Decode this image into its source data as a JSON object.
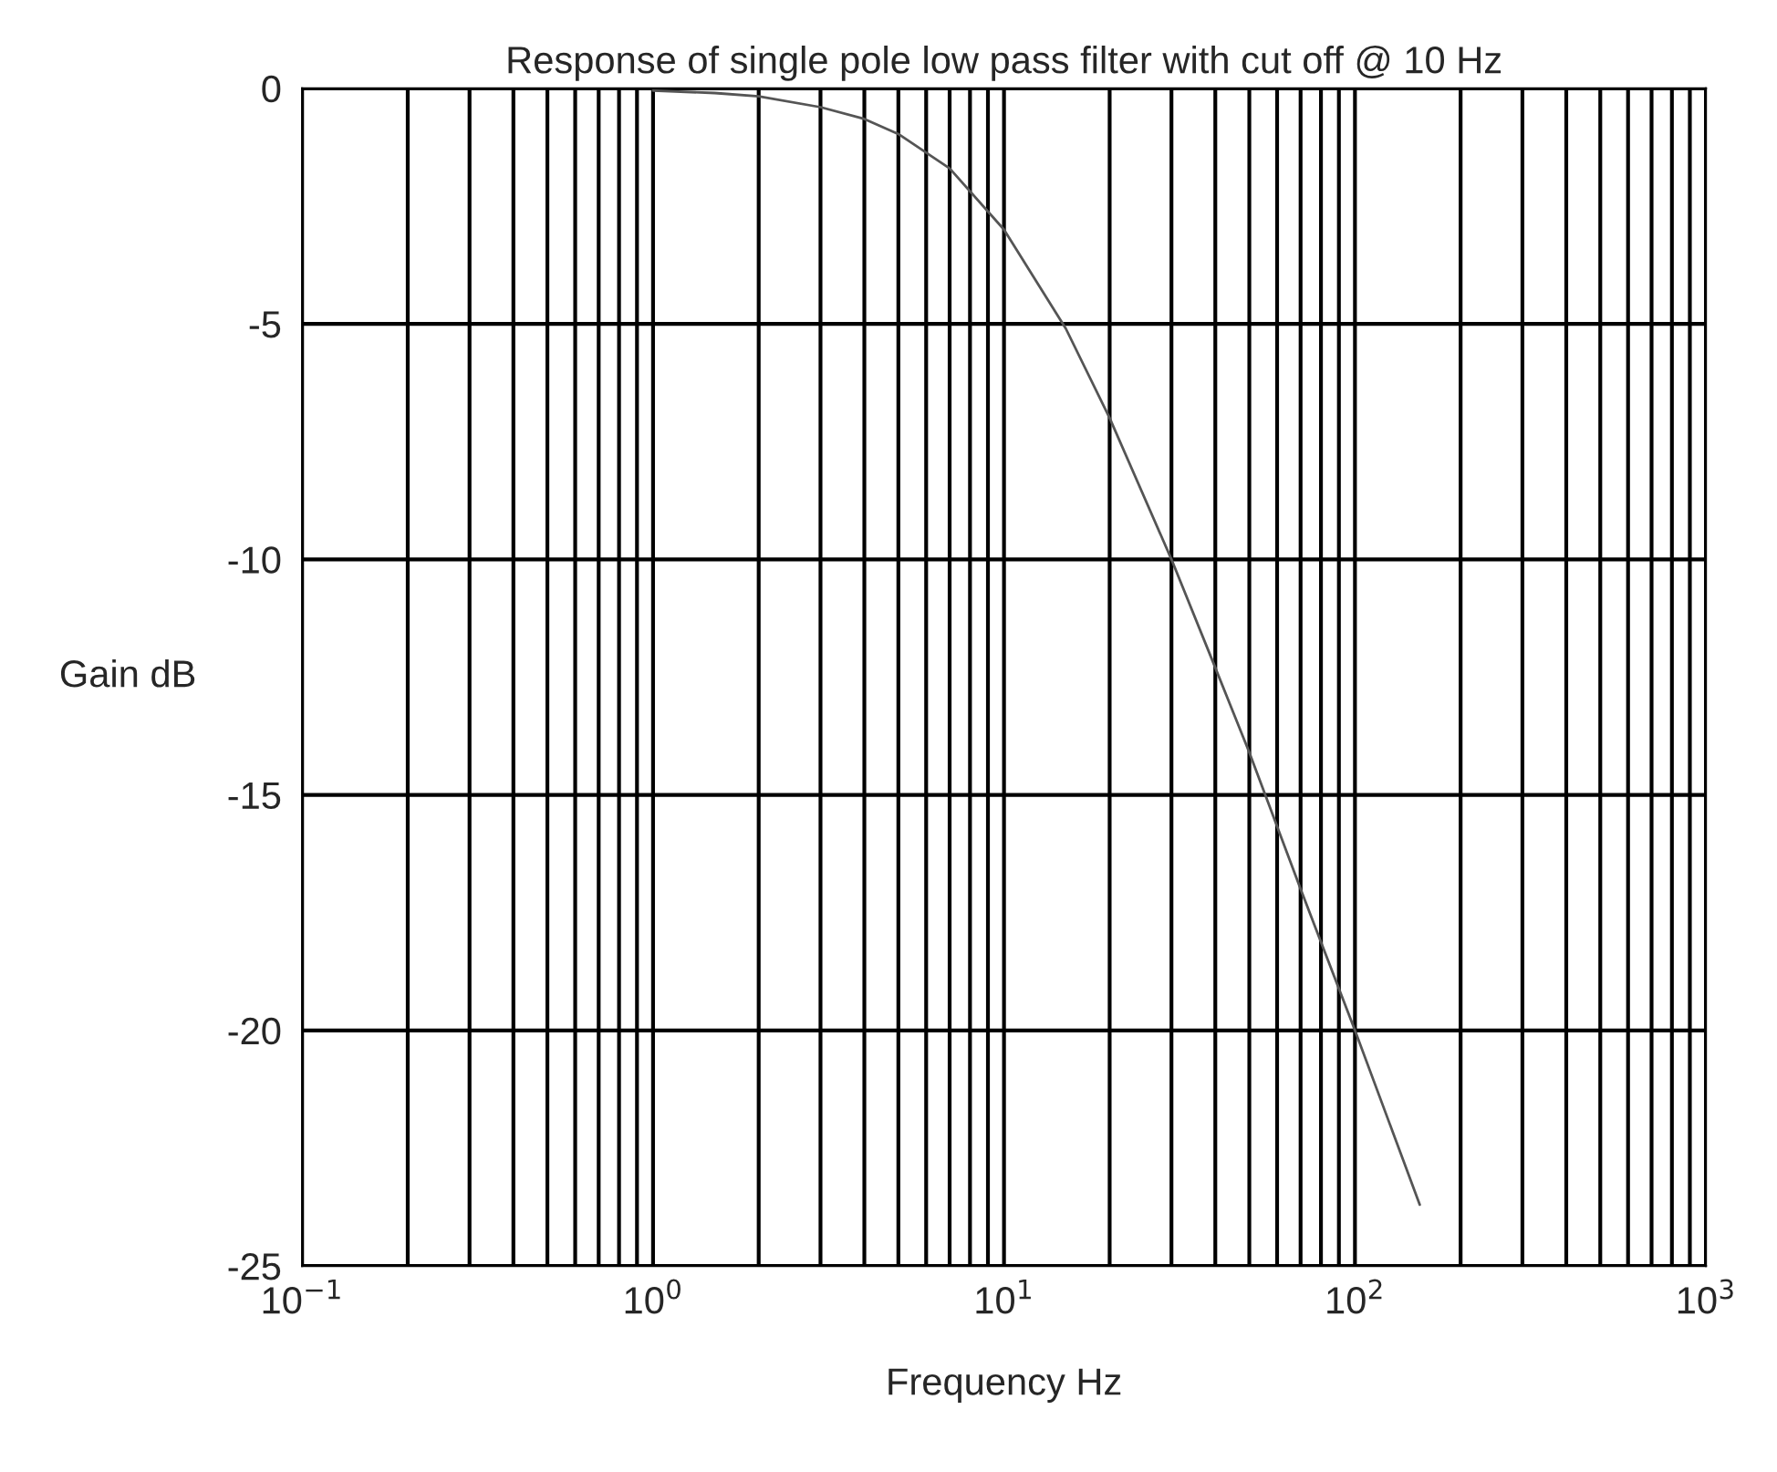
{
  "chart_data": {
    "type": "line",
    "title": "Response of single pole low pass filter with cut off @ 10 Hz",
    "xlabel": "Frequency Hz",
    "ylabel": "Gain dB",
    "log": "x",
    "grid": true,
    "series": [
      {
        "color": "#555555",
        "x": [
          1,
          1.5,
          2,
          3,
          4,
          5,
          7,
          10,
          15,
          20,
          30,
          40,
          50,
          70,
          100,
          153
        ],
        "values": [
          -0.05,
          -0.1,
          -0.17,
          -0.4,
          -0.65,
          -0.97,
          -1.7,
          -3.0,
          -5.1,
          -7.0,
          -10.0,
          -12.3,
          -14.1,
          -17.0,
          -20.0,
          -23.7
        ]
      }
    ],
    "xlim": [
      0.1,
      1000
    ],
    "xticks": [
      {
        "value": 0.1,
        "label": "10$^{−1}$"
      },
      {
        "value": 1,
        "label": "10$^{0}$"
      },
      {
        "value": 10,
        "label": "10$^{1}$"
      },
      {
        "value": 100,
        "label": "10$^{2}$"
      },
      {
        "value": 1000,
        "label": "10$^{3}$"
      }
    ],
    "ylim": [
      -25,
      0
    ],
    "yticks": [
      -25,
      -20,
      -15,
      -10,
      -5,
      0
    ]
  }
}
